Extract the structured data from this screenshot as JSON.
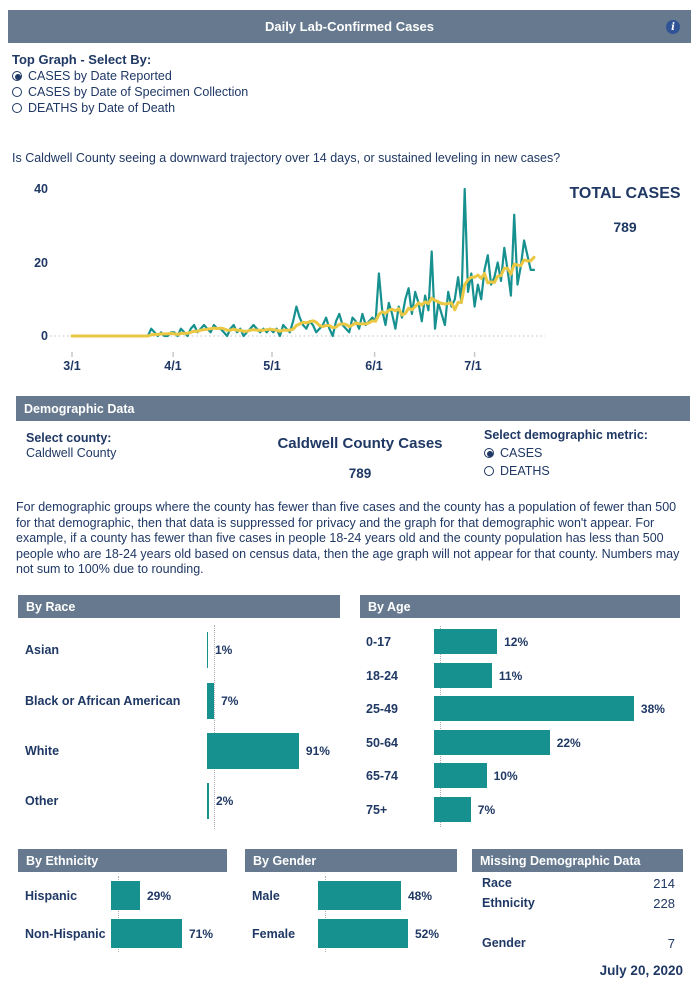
{
  "colors": {
    "slate": "#66798E",
    "navy": "#1F3864",
    "teal": "#17918F",
    "gold": "#EBC843",
    "info_blue": "#2F5496",
    "grid_dotted": "#BFBFBF"
  },
  "header": {
    "title": "Daily Lab-Confirmed Cases",
    "info_glyph": "i"
  },
  "top_controls": {
    "label": "Top Graph - Select By:",
    "options": [
      {
        "label": "CASES by Date Reported",
        "selected": true
      },
      {
        "label": "CASES by Date of Specimen Collection",
        "selected": false
      },
      {
        "label": "DEATHS by Date of Death",
        "selected": false
      }
    ]
  },
  "question": "Is Caldwell County seeing a downward trajectory over 14 days, or sustained leveling in new cases?",
  "total_cases": {
    "label": "TOTAL CASES",
    "value": "789"
  },
  "demographic": {
    "section_title": "Demographic Data",
    "select_county_label": "Select county:",
    "selected_county": "Caldwell County",
    "center_title": "Caldwell County Cases",
    "center_value": "789",
    "metric_label": "Select demographic metric:",
    "metric_options": [
      {
        "label": "CASES",
        "selected": true
      },
      {
        "label": "DEATHS",
        "selected": false
      }
    ],
    "disclaimer": "For demographic groups where the county has fewer than five cases and the county has a population of fewer than 500 for that demographic, then that data is suppressed for privacy and the graph for that demographic won't appear. For example, if a county has fewer than five cases in people 18-24 years old and the county population has less than 500 people who are 18-24 years old based on census data, then the age graph will not appear for that county. Numbers may not sum to 100% due to rounding."
  },
  "missing": {
    "title": "Missing Demographic Data",
    "rows": [
      {
        "label": "Race",
        "value": "214"
      },
      {
        "label": "Ethnicity",
        "value": "228"
      },
      {
        "label": "Gender",
        "value": "7"
      }
    ]
  },
  "footer_date": "July 20, 2020",
  "chart_data": [
    {
      "id": "daily_cases",
      "type": "line",
      "title": "Daily Lab-Confirmed Cases by Date Reported",
      "x_start": "3/1/2020",
      "x_end": "7/19/2020",
      "x_tick_labels": [
        "3/1",
        "4/1",
        "5/1",
        "6/1",
        "7/1"
      ],
      "y_ticks": [
        "0",
        "20",
        "40"
      ],
      "ylim": [
        0,
        40
      ],
      "grid": "dotted zero baseline only",
      "legend_position": "none",
      "annotation": {
        "label": "TOTAL CASES",
        "value": 789
      },
      "series": [
        {
          "name": "Daily lab-confirmed cases",
          "color": "#17918F",
          "values": [
            0,
            0,
            0,
            0,
            0,
            0,
            0,
            0,
            0,
            0,
            0,
            0,
            0,
            0,
            0,
            0,
            0,
            0,
            0,
            0,
            0,
            0,
            0,
            0,
            2,
            1,
            0,
            1,
            0,
            0,
            1,
            1,
            0,
            2,
            1,
            0,
            2,
            3,
            1,
            2,
            3,
            2,
            1,
            3,
            2,
            2,
            1,
            0,
            2,
            3,
            1,
            2,
            0,
            1,
            2,
            3,
            2,
            1,
            2,
            1,
            2,
            1,
            2,
            0,
            3,
            2,
            1,
            4,
            8,
            5,
            3,
            2,
            4,
            3,
            1,
            2,
            3,
            5,
            2,
            0,
            4,
            6,
            3,
            2,
            1,
            5,
            4,
            2,
            6,
            3,
            4,
            5,
            4,
            17,
            7,
            3,
            9,
            6,
            2,
            8,
            5,
            10,
            13,
            6,
            12,
            9,
            4,
            11,
            7,
            23,
            2,
            9,
            6,
            3,
            12,
            8,
            10,
            16,
            9,
            40,
            12,
            17,
            8,
            14,
            10,
            18,
            22,
            14,
            16,
            20,
            15,
            24,
            18,
            11,
            33,
            14,
            19,
            26,
            22,
            18,
            18
          ]
        },
        {
          "name": "7-day moving average",
          "color": "#EBC843",
          "derived_from": "7-day trailing mean of daily values"
        }
      ]
    },
    {
      "id": "by_race",
      "type": "bar",
      "orientation": "horizontal",
      "title": "By Race",
      "unit": "%",
      "categories": [
        "Asian",
        "Black or African American",
        "White",
        "Other"
      ],
      "values": [
        1,
        7,
        91,
        2
      ],
      "value_labels": [
        "1%",
        "7%",
        "91%",
        "2%"
      ]
    },
    {
      "id": "by_age",
      "type": "bar",
      "orientation": "horizontal",
      "title": "By Age",
      "unit": "%",
      "categories": [
        "0-17",
        "18-24",
        "25-49",
        "50-64",
        "65-74",
        "75+"
      ],
      "values": [
        12,
        11,
        38,
        22,
        10,
        7
      ],
      "value_labels": [
        "12%",
        "11%",
        "38%",
        "22%",
        "10%",
        "7%"
      ]
    },
    {
      "id": "by_ethnicity",
      "type": "bar",
      "orientation": "horizontal",
      "title": "By Ethnicity",
      "unit": "%",
      "categories": [
        "Hispanic",
        "Non-Hispanic"
      ],
      "values": [
        29,
        71
      ],
      "value_labels": [
        "29%",
        "71%"
      ]
    },
    {
      "id": "by_gender",
      "type": "bar",
      "orientation": "horizontal",
      "title": "By Gender",
      "unit": "%",
      "categories": [
        "Male",
        "Female"
      ],
      "values": [
        48,
        52
      ],
      "value_labels": [
        "48%",
        "52%"
      ]
    }
  ]
}
